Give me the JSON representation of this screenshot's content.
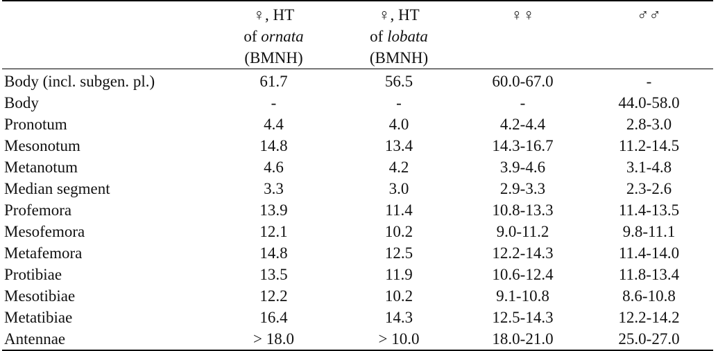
{
  "table": {
    "headers": [
      {
        "lines": [
          {
            "pre": "♀, HT",
            "em": "",
            "post": ""
          },
          {
            "pre": "of ",
            "em": "ornata",
            "post": ""
          },
          {
            "pre": "(BMNH)",
            "em": "",
            "post": ""
          }
        ]
      },
      {
        "lines": [
          {
            "pre": "♀, HT",
            "em": "",
            "post": ""
          },
          {
            "pre": "of ",
            "em": "lobata",
            "post": ""
          },
          {
            "pre": "(BMNH)",
            "em": "",
            "post": ""
          }
        ]
      },
      {
        "lines": [
          {
            "pre": "♀♀",
            "em": "",
            "post": ""
          }
        ]
      },
      {
        "lines": [
          {
            "pre": "♂♂",
            "em": "",
            "post": ""
          }
        ]
      }
    ],
    "rows": [
      {
        "label": "Body (incl. subgen. pl.)",
        "values": [
          "61.7",
          "56.5",
          "60.0-67.0",
          "-"
        ]
      },
      {
        "label": "Body",
        "values": [
          "-",
          "-",
          "-",
          "44.0-58.0"
        ]
      },
      {
        "label": "Pronotum",
        "values": [
          "4.4",
          "4.0",
          "4.2-4.4",
          "2.8-3.0"
        ]
      },
      {
        "label": "Mesonotum",
        "values": [
          "14.8",
          "13.4",
          "14.3-16.7",
          "11.2-14.5"
        ]
      },
      {
        "label": "Metanotum",
        "values": [
          "4.6",
          "4.2",
          "3.9-4.6",
          "3.1-4.8"
        ]
      },
      {
        "label": "Median segment",
        "values": [
          "3.3",
          "3.0",
          "2.9-3.3",
          "2.3-2.6"
        ]
      },
      {
        "label": "Profemora",
        "values": [
          "13.9",
          "11.4",
          "10.8-13.3",
          "11.4-13.5"
        ]
      },
      {
        "label": "Mesofemora",
        "values": [
          "12.1",
          "10.2",
          "9.0-11.2",
          "9.8-11.1"
        ]
      },
      {
        "label": "Metafemora",
        "values": [
          "14.8",
          "12.5",
          "12.2-14.3",
          "11.4-14.0"
        ]
      },
      {
        "label": "Protibiae",
        "values": [
          "13.5",
          "11.9",
          "10.6-12.4",
          "11.8-13.4"
        ]
      },
      {
        "label": "Mesotibiae",
        "values": [
          "12.2",
          "10.2",
          "9.1-10.8",
          "8.6-10.8"
        ]
      },
      {
        "label": "Metatibiae",
        "values": [
          "16.4",
          "14.3",
          "12.5-14.3",
          "12.2-14.2"
        ]
      },
      {
        "label": "Antennae",
        "values": [
          "> 18.0",
          "> 10.0",
          "18.0-21.0",
          "25.0-27.0"
        ]
      }
    ]
  }
}
